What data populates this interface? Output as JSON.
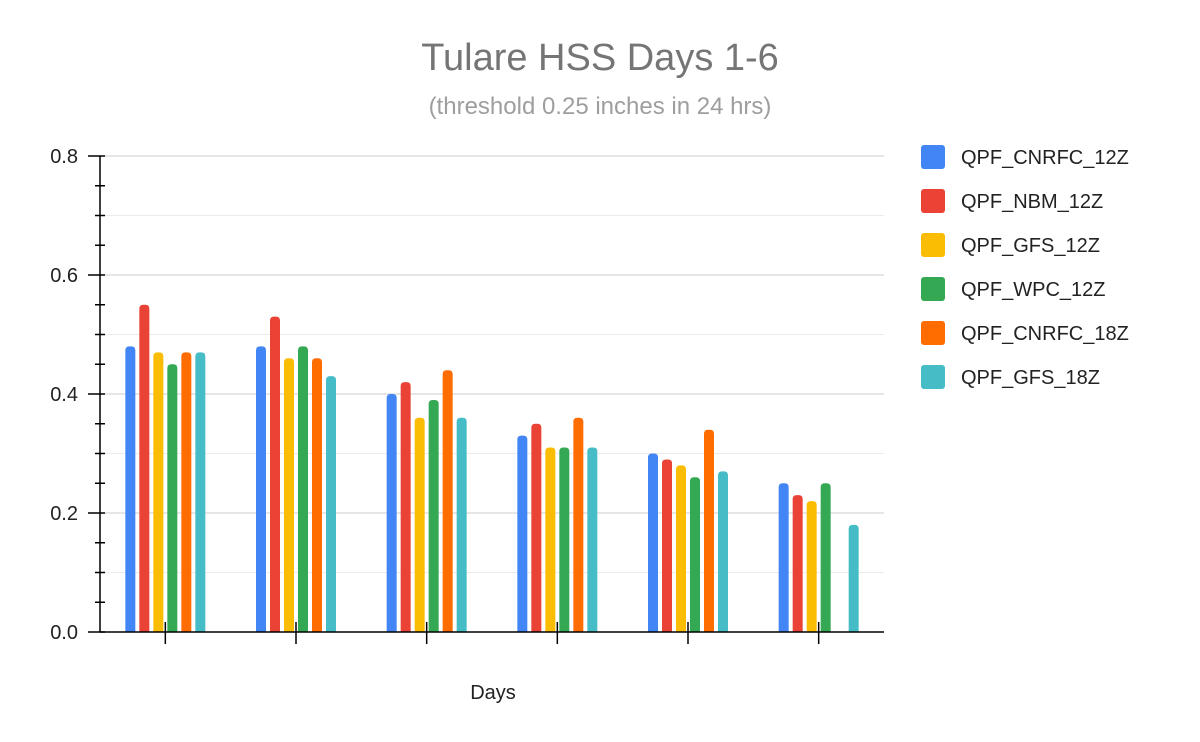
{
  "chart_data": {
    "type": "bar",
    "title": "Tulare HSS Days 1-6",
    "subtitle": "(threshold 0.25 inches in 24 hrs)",
    "xlabel": "Days",
    "ylabel": "",
    "ylim": [
      0,
      0.8
    ],
    "yticks": [
      "0.0",
      "0.2",
      "0.4",
      "0.6",
      "0.8"
    ],
    "categories": [
      "",
      "",
      "",
      "",
      "",
      ""
    ],
    "grid": true,
    "legend_position": "right",
    "series": [
      {
        "name": "QPF_CNRFC_12Z",
        "color": "#4285f4",
        "values": [
          0.48,
          0.48,
          0.4,
          0.33,
          0.3,
          0.25
        ]
      },
      {
        "name": "QPF_NBM_12Z",
        "color": "#ea4335",
        "values": [
          0.55,
          0.53,
          0.42,
          0.35,
          0.29,
          0.23
        ]
      },
      {
        "name": "QPF_GFS_12Z",
        "color": "#fbbc04",
        "values": [
          0.47,
          0.46,
          0.36,
          0.31,
          0.28,
          0.22
        ]
      },
      {
        "name": "QPF_WPC_12Z",
        "color": "#34a853",
        "values": [
          0.45,
          0.48,
          0.39,
          0.31,
          0.26,
          0.25
        ]
      },
      {
        "name": "QPF_CNRFC_18Z",
        "color": "#ff6d01",
        "values": [
          0.47,
          0.46,
          0.44,
          0.36,
          0.34,
          null
        ]
      },
      {
        "name": "QPF_GFS_18Z",
        "color": "#46bdc6",
        "values": [
          0.47,
          0.43,
          0.36,
          0.31,
          0.27,
          0.18
        ]
      }
    ]
  }
}
